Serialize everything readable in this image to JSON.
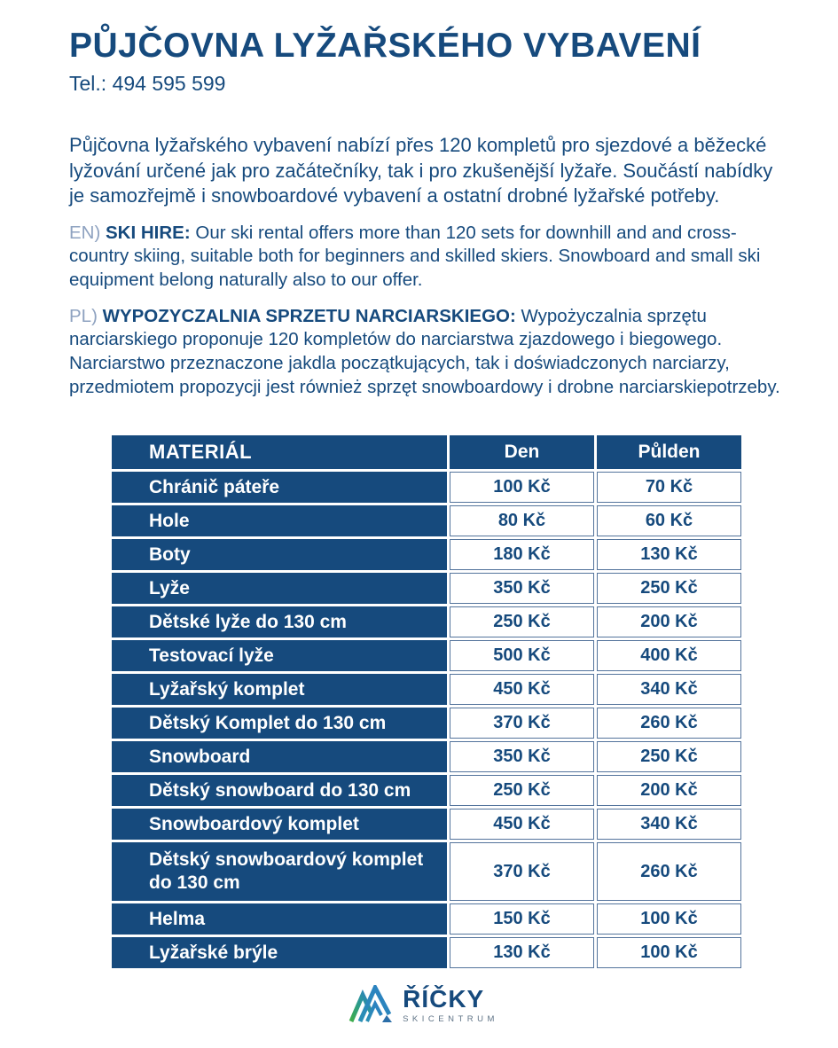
{
  "header": {
    "title": "PŮJČOVNA LYŽAŘSKÉHO VYBAVENÍ",
    "phone": "Tel.: 494 595 599"
  },
  "intro_cz": "Půjčovna lyžařského vybavení nabízí přes 120 kompletů pro sjezdové a běžecké lyžování určené jak pro začátečníky, tak i pro zkušenější lyžaře. Součástí nabídky je samozřejmě i snowboardové vybavení a ostatní drobné lyžařské potřeby.",
  "en": {
    "prefix": "EN) ",
    "label": "SKI HIRE:",
    "text": " Our ski rental offers more than 120 sets for downhill and and cross-country skiing, suitable both for beginners and skilled skiers. Snowboard and small ski equipment belong naturally also to our offer."
  },
  "pl": {
    "prefix": "PL) ",
    "label": "WYPOZYCZALNIA SPRZETU NARCIARSKIEGO:",
    "text": " Wypożyczalnia sprzętu narciarskiego proponuje 120 kompletów do narciarstwa zjazdowego i biegowego. Narciarstwo przeznaczone jakdla początkujących, tak i doświadczonych narciarzy, przedmiotem propozycji jest również sprzęt snowboardowy i drobne narciarskiepotrzeby."
  },
  "table": {
    "headers": [
      "MATERIÁL",
      "Den",
      "Půlden"
    ],
    "rows": [
      {
        "material": "Chránič páteře",
        "den": "100 Kč",
        "pulden": "70 Kč"
      },
      {
        "material": "Hole",
        "den": "80 Kč",
        "pulden": "60 Kč"
      },
      {
        "material": "Boty",
        "den": "180 Kč",
        "pulden": "130 Kč"
      },
      {
        "material": "Lyže",
        "den": "350 Kč",
        "pulden": "250 Kč"
      },
      {
        "material": "Dětské lyže do 130 cm",
        "den": "250 Kč",
        "pulden": "200 Kč"
      },
      {
        "material": "Testovací lyže",
        "den": "500 Kč",
        "pulden": "400 Kč"
      },
      {
        "material": "Lyžařský komplet",
        "den": "450 Kč",
        "pulden": "340 Kč"
      },
      {
        "material": "Dětský Komplet do 130 cm",
        "den": "370 Kč",
        "pulden": "260 Kč"
      },
      {
        "material": "Snowboard",
        "den": "350 Kč",
        "pulden": "250 Kč"
      },
      {
        "material": "Dětský snowboard do 130 cm",
        "den": "250 Kč",
        "pulden": "200 Kč"
      },
      {
        "material": "Snowboardový komplet",
        "den": "450 Kč",
        "pulden": "340 Kč"
      },
      {
        "material": "Dětský snowboardový komplet do 130 cm",
        "den": "370 Kč",
        "pulden": "260 Kč",
        "tall": true
      },
      {
        "material": "Helma",
        "den": "150 Kč",
        "pulden": "100 Kč"
      },
      {
        "material": "Lyžařské brýle",
        "den": "130 Kč",
        "pulden": "100 Kč"
      }
    ]
  },
  "footer": {
    "brand": "ŘÍČKY",
    "sub": "SKICENTRUM",
    "icon": "mountains-icon"
  },
  "colors": {
    "navy": "#164a7d",
    "prefix_light_blue": "#8ea2c0",
    "cell_border": "#54749c",
    "logo_green": "#3fae49",
    "logo_blue": "#2b7fc3",
    "logo_sub_gray": "#5f7386"
  }
}
